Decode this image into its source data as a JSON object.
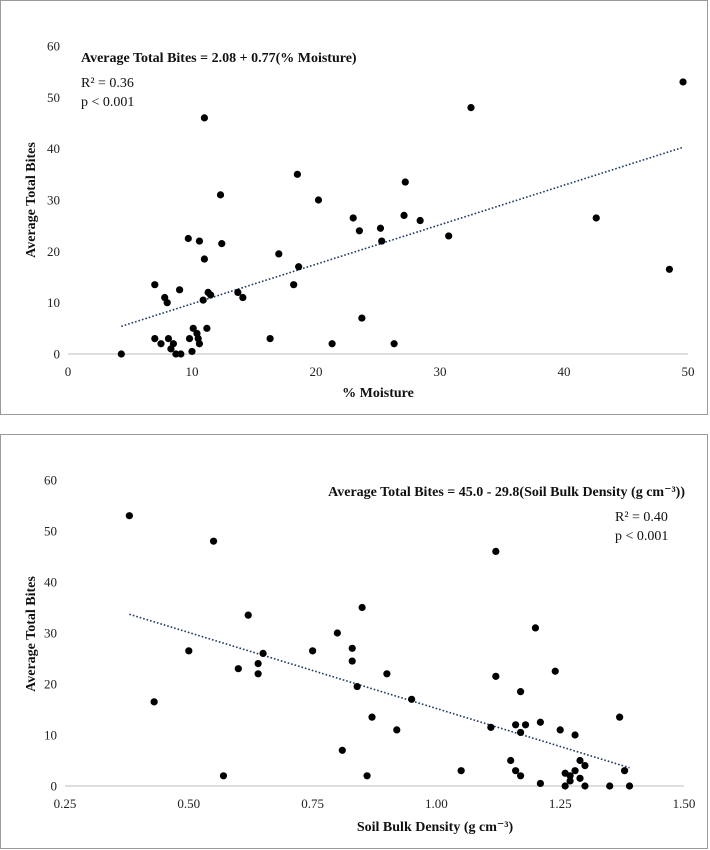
{
  "chart_data": [
    {
      "type": "scatter",
      "title": "",
      "xlabel": "% Moisture",
      "ylabel": "Average Total Bites",
      "equation": "Average Total Bites = 2.08 + 0.77(% Moisture)",
      "r2": "R² = 0.36",
      "pvalue": "p < 0.001",
      "xlim": [
        0,
        50
      ],
      "ylim": [
        0,
        60
      ],
      "xticks": [
        0,
        10,
        20,
        30,
        40,
        50
      ],
      "xtick_labels": [
        "0",
        "10",
        "20",
        "30",
        "40",
        "50"
      ],
      "yticks": [
        0,
        10,
        20,
        30,
        40,
        50,
        60
      ],
      "ytick_labels": [
        "0",
        "10",
        "20",
        "30",
        "40",
        "50",
        "60"
      ],
      "trendline": {
        "intercept": 2.08,
        "slope": 0.77,
        "x_range": [
          4.3,
          49.6
        ],
        "style": "dotted"
      },
      "grid": false,
      "legend": "none",
      "marker_color": "#000000",
      "trend_color": "#1f3a5f",
      "points": [
        [
          4.3,
          0
        ],
        [
          7.0,
          13.5
        ],
        [
          7.0,
          3
        ],
        [
          7.5,
          2
        ],
        [
          7.8,
          11
        ],
        [
          8.0,
          10
        ],
        [
          8.1,
          3
        ],
        [
          8.3,
          1
        ],
        [
          8.5,
          2
        ],
        [
          8.7,
          0
        ],
        [
          9.0,
          12.5
        ],
        [
          9.1,
          0
        ],
        [
          9.7,
          22.5
        ],
        [
          9.8,
          3
        ],
        [
          10.0,
          0.5
        ],
        [
          10.1,
          5
        ],
        [
          10.4,
          4
        ],
        [
          10.5,
          3
        ],
        [
          10.6,
          2
        ],
        [
          10.6,
          22
        ],
        [
          10.9,
          10.5
        ],
        [
          11.0,
          46
        ],
        [
          11.0,
          18.5
        ],
        [
          11.2,
          5
        ],
        [
          11.3,
          12
        ],
        [
          11.5,
          11.5
        ],
        [
          12.3,
          31
        ],
        [
          12.4,
          21.5
        ],
        [
          13.7,
          12
        ],
        [
          14.1,
          11
        ],
        [
          16.3,
          3
        ],
        [
          17.0,
          19.5
        ],
        [
          18.2,
          13.5
        ],
        [
          18.5,
          35
        ],
        [
          18.6,
          17
        ],
        [
          20.2,
          30
        ],
        [
          21.3,
          2
        ],
        [
          23.0,
          26.5
        ],
        [
          23.5,
          24
        ],
        [
          23.7,
          7
        ],
        [
          25.2,
          24.5
        ],
        [
          25.3,
          22
        ],
        [
          26.3,
          2
        ],
        [
          27.1,
          27
        ],
        [
          27.2,
          33.5
        ],
        [
          28.4,
          26
        ],
        [
          30.7,
          23
        ],
        [
          32.5,
          48
        ],
        [
          42.6,
          26.5
        ],
        [
          48.5,
          16.5
        ],
        [
          49.6,
          53
        ]
      ]
    },
    {
      "type": "scatter",
      "title": "",
      "xlabel": "Soil Bulk Density (g cm⁻³)",
      "ylabel": "Average Total Bites",
      "equation": "Average Total Bites = 45.0 - 29.8(Soil Bulk Density (g cm⁻³))",
      "r2": "R² = 0.40",
      "pvalue": "p < 0.001",
      "xlim": [
        0.25,
        1.5
      ],
      "ylim": [
        0,
        60
      ],
      "xticks": [
        0.25,
        0.5,
        0.75,
        1.0,
        1.25,
        1.5
      ],
      "xtick_labels": [
        "0.25",
        "0.50",
        "0.75",
        "1.00",
        "1.25",
        "1.50"
      ],
      "yticks": [
        0,
        10,
        20,
        30,
        40,
        50,
        60
      ],
      "ytick_labels": [
        "0",
        "10",
        "20",
        "30",
        "40",
        "50",
        "60"
      ],
      "trendline": {
        "intercept": 45.0,
        "slope": -29.8,
        "x_range": [
          0.38,
          1.39
        ],
        "style": "dotted"
      },
      "grid": false,
      "legend": "none",
      "marker_color": "#000000",
      "trend_color": "#1f3a5f",
      "points": [
        [
          0.38,
          53
        ],
        [
          0.43,
          16.5
        ],
        [
          0.5,
          26.5
        ],
        [
          0.55,
          48
        ],
        [
          0.57,
          2
        ],
        [
          0.6,
          23
        ],
        [
          0.62,
          33.5
        ],
        [
          0.64,
          24
        ],
        [
          0.64,
          22
        ],
        [
          0.65,
          26
        ],
        [
          0.75,
          26.5
        ],
        [
          0.8,
          30
        ],
        [
          0.81,
          7
        ],
        [
          0.83,
          24.5
        ],
        [
          0.83,
          27
        ],
        [
          0.84,
          19.5
        ],
        [
          0.85,
          35
        ],
        [
          0.86,
          2
        ],
        [
          0.87,
          13.5
        ],
        [
          0.9,
          22
        ],
        [
          0.92,
          11
        ],
        [
          0.95,
          17
        ],
        [
          1.05,
          3
        ],
        [
          1.11,
          11.5
        ],
        [
          1.12,
          21.5
        ],
        [
          1.12,
          46
        ],
        [
          1.15,
          5
        ],
        [
          1.16,
          3
        ],
        [
          1.16,
          12
        ],
        [
          1.17,
          10.5
        ],
        [
          1.17,
          2
        ],
        [
          1.17,
          18.5
        ],
        [
          1.18,
          12
        ],
        [
          1.2,
          31
        ],
        [
          1.21,
          12.5
        ],
        [
          1.21,
          0.5
        ],
        [
          1.24,
          22.5
        ],
        [
          1.25,
          11
        ],
        [
          1.26,
          2.5
        ],
        [
          1.26,
          0
        ],
        [
          1.27,
          1
        ],
        [
          1.27,
          2
        ],
        [
          1.28,
          3
        ],
        [
          1.28,
          10
        ],
        [
          1.29,
          5
        ],
        [
          1.29,
          1.5
        ],
        [
          1.3,
          4
        ],
        [
          1.3,
          0
        ],
        [
          1.35,
          0
        ],
        [
          1.37,
          13.5
        ],
        [
          1.38,
          3
        ],
        [
          1.39,
          0
        ]
      ]
    }
  ]
}
